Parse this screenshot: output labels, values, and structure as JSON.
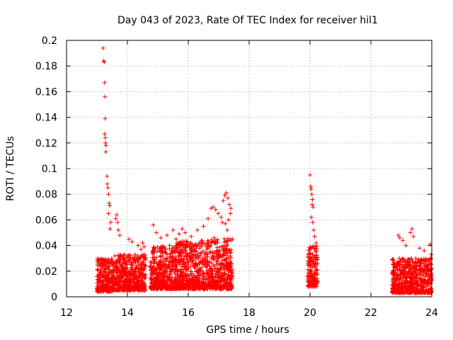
{
  "chart_data": {
    "type": "scatter",
    "title": "Day 043 of 2023, Rate Of TEC Index for receiver hil1",
    "xlabel": "GPS time / hours",
    "ylabel": "ROTI / TECUs",
    "xlim": [
      12,
      24
    ],
    "ylim": [
      0,
      0.2
    ],
    "xticks": [
      {
        "value": 12,
        "label": "12"
      },
      {
        "value": 14,
        "label": "14"
      },
      {
        "value": 16,
        "label": "16"
      },
      {
        "value": 18,
        "label": "18"
      },
      {
        "value": 20,
        "label": "20"
      },
      {
        "value": 22,
        "label": "22"
      },
      {
        "value": 24,
        "label": "24"
      }
    ],
    "yticks": [
      {
        "value": 0,
        "label": "0"
      },
      {
        "value": 0.02,
        "label": "0.02"
      },
      {
        "value": 0.04,
        "label": "0.04"
      },
      {
        "value": 0.06,
        "label": "0.06"
      },
      {
        "value": 0.08,
        "label": "0.08"
      },
      {
        "value": 0.1,
        "label": "0.1"
      },
      {
        "value": 0.12,
        "label": "0.12"
      },
      {
        "value": 0.14,
        "label": "0.14"
      },
      {
        "value": 0.16,
        "label": "0.16"
      },
      {
        "value": 0.18,
        "label": "0.18"
      },
      {
        "value": 0.2,
        "label": "0.2"
      }
    ],
    "grid": true,
    "marker": "+",
    "series": [
      {
        "name": "ROTI",
        "color": "#ff0000",
        "points": [
          [
            13.2,
            0.194
          ],
          [
            13.22,
            0.184
          ],
          [
            13.24,
            0.183
          ],
          [
            13.25,
            0.167
          ],
          [
            13.26,
            0.156
          ],
          [
            13.27,
            0.139
          ],
          [
            13.25,
            0.127
          ],
          [
            13.27,
            0.124
          ],
          [
            13.28,
            0.12
          ],
          [
            13.3,
            0.118
          ],
          [
            13.29,
            0.113
          ],
          [
            13.33,
            0.094
          ],
          [
            13.34,
            0.088
          ],
          [
            13.36,
            0.085
          ],
          [
            13.38,
            0.08
          ],
          [
            13.4,
            0.073
          ],
          [
            13.42,
            0.071
          ],
          [
            13.38,
            0.065
          ],
          [
            13.45,
            0.058
          ],
          [
            13.43,
            0.053
          ],
          [
            13.65,
            0.064
          ],
          [
            13.62,
            0.061
          ],
          [
            13.68,
            0.058
          ],
          [
            13.7,
            0.052
          ],
          [
            13.75,
            0.048
          ],
          [
            14.05,
            0.045
          ],
          [
            14.15,
            0.043
          ],
          [
            14.35,
            0.04
          ],
          [
            14.5,
            0.042
          ],
          [
            14.55,
            0.039
          ],
          [
            14.45,
            0.037
          ],
          [
            14.85,
            0.056
          ],
          [
            14.95,
            0.05
          ],
          [
            15.1,
            0.046
          ],
          [
            15.3,
            0.048
          ],
          [
            15.5,
            0.052
          ],
          [
            15.6,
            0.045
          ],
          [
            15.7,
            0.049
          ],
          [
            15.8,
            0.053
          ],
          [
            15.9,
            0.05
          ],
          [
            16.1,
            0.047
          ],
          [
            16.3,
            0.052
          ],
          [
            16.5,
            0.055
          ],
          [
            16.65,
            0.061
          ],
          [
            16.75,
            0.069
          ],
          [
            16.82,
            0.07
          ],
          [
            16.9,
            0.068
          ],
          [
            16.98,
            0.065
          ],
          [
            17.08,
            0.062
          ],
          [
            17.15,
            0.075
          ],
          [
            17.2,
            0.079
          ],
          [
            17.25,
            0.081
          ],
          [
            17.3,
            0.077
          ],
          [
            17.35,
            0.072
          ],
          [
            17.4,
            0.069
          ],
          [
            17.38,
            0.065
          ],
          [
            17.32,
            0.06
          ],
          [
            17.22,
            0.057
          ],
          [
            17.12,
            0.058
          ],
          [
            17.28,
            0.052
          ],
          [
            20.0,
            0.095
          ],
          [
            20.02,
            0.086
          ],
          [
            20.04,
            0.084
          ],
          [
            20.06,
            0.08
          ],
          [
            20.08,
            0.076
          ],
          [
            20.07,
            0.072
          ],
          [
            20.1,
            0.07
          ],
          [
            20.05,
            0.062
          ],
          [
            20.09,
            0.058
          ],
          [
            20.12,
            0.052
          ],
          [
            20.15,
            0.047
          ],
          [
            20.2,
            0.042
          ],
          [
            22.9,
            0.048
          ],
          [
            22.95,
            0.046
          ],
          [
            23.05,
            0.044
          ],
          [
            23.15,
            0.04
          ],
          [
            23.3,
            0.05
          ],
          [
            23.35,
            0.053
          ],
          [
            23.4,
            0.047
          ],
          [
            23.6,
            0.038
          ],
          [
            23.75,
            0.036
          ],
          [
            23.95,
            0.041
          ],
          [
            23.98,
            0.033
          ]
        ],
        "bands": [
          {
            "x": [
              13.0,
              13.5
            ],
            "y": [
              0.004,
              0.03
            ]
          },
          {
            "x": [
              13.5,
              14.6
            ],
            "y": [
              0.005,
              0.033
            ]
          },
          {
            "x": [
              14.75,
              15.6
            ],
            "y": [
              0.006,
              0.04
            ]
          },
          {
            "x": [
              15.6,
              16.6
            ],
            "y": [
              0.006,
              0.044
            ]
          },
          {
            "x": [
              16.6,
              17.45
            ],
            "y": [
              0.006,
              0.046
            ]
          },
          {
            "x": [
              19.92,
              20.25
            ],
            "y": [
              0.008,
              0.04
            ]
          },
          {
            "x": [
              22.7,
              24.0
            ],
            "y": [
              0.003,
              0.03
            ]
          }
        ]
      }
    ]
  }
}
